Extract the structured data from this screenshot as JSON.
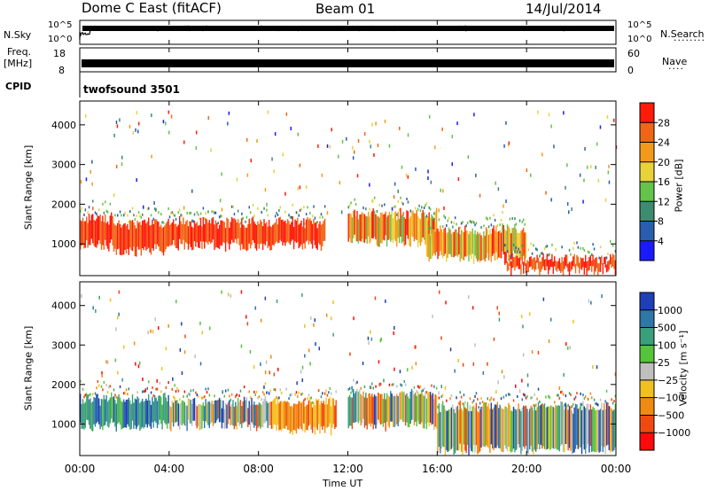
{
  "header": {
    "radar": "Dome C East (fitACF)",
    "beam": "Beam 01",
    "date": "14/Jul/2014"
  },
  "top_strips": {
    "nsky_label": "N.Sky",
    "nsky_ticks": [
      "10^5",
      "10^0"
    ],
    "nsearch_label": "N.Search",
    "nsearch_ticks": [
      "10^5",
      "10^0"
    ],
    "freq_label": "Freq.",
    "freq_unit": "[MHz]",
    "freq_ticks": [
      "18",
      "8"
    ],
    "nave_label": "Nave",
    "nave_ticks": [
      "60",
      "0"
    ],
    "cpid_label": "CPID",
    "cpid_value": "twofsound 3501"
  },
  "chart_data": [
    {
      "type": "heatmap",
      "panel": "power",
      "ylabel": "Slant Range [km]",
      "ylim": [
        200,
        4600
      ],
      "yticks": [
        "1000",
        "2000",
        "3000",
        "4000"
      ],
      "xlim_hours": [
        0,
        24
      ],
      "colorbar_label": "Power [dB]",
      "colorbar_ticks": [
        "4",
        "8",
        "12",
        "16",
        "20",
        "24",
        "28"
      ],
      "colorbar_colors": [
        "#1a1aff",
        "#2a5db0",
        "#3c8c6e",
        "#63c34a",
        "#e8d23a",
        "#f49a1a",
        "#f06616",
        "#ff1a0a"
      ],
      "bands": [
        {
          "t0": 0.0,
          "t1": 1.5,
          "r0": 900,
          "r1": 1700,
          "level": "high"
        },
        {
          "t0": 1.5,
          "t1": 4.0,
          "r0": 800,
          "r1": 1600,
          "level": "high"
        },
        {
          "t0": 4.0,
          "t1": 8.0,
          "r0": 900,
          "r1": 1600,
          "level": "high"
        },
        {
          "t0": 8.0,
          "t1": 11.0,
          "r0": 900,
          "r1": 1600,
          "level": "high"
        },
        {
          "t0": 12.0,
          "t1": 16.0,
          "r0": 1000,
          "r1": 1800,
          "level": "mid"
        },
        {
          "t0": 15.5,
          "t1": 20.0,
          "r0": 600,
          "r1": 1400,
          "level": "mid"
        },
        {
          "t0": 19.0,
          "t1": 24.0,
          "r0": 300,
          "r1": 700,
          "level": "high"
        }
      ]
    },
    {
      "type": "heatmap",
      "panel": "velocity",
      "ylabel": "Slant Range [km]",
      "ylim": [
        200,
        4600
      ],
      "yticks": [
        "1000",
        "2000",
        "3000",
        "4000"
      ],
      "xlim_hours": [
        0,
        24
      ],
      "xticks": [
        "00:00",
        "04:00",
        "08:00",
        "12:00",
        "16:00",
        "20:00",
        "00:00"
      ],
      "xlabel": "Time UT",
      "colorbar_label": "Velocity [m s⁻¹]",
      "colorbar_ticks": [
        "1000",
        "500",
        "100",
        "25",
        "−25",
        "−100",
        "−500",
        "−1000"
      ],
      "colorbar_colors": [
        "#1f3fb5",
        "#2e78a8",
        "#3a9f7a",
        "#55c43a",
        "#bfbfbf",
        "#f0c020",
        "#f08a10",
        "#f04a10",
        "#ff0a0a"
      ],
      "bands": [
        {
          "t0": 0.0,
          "t1": 4.0,
          "r0": 900,
          "r1": 1700,
          "level": "pos"
        },
        {
          "t0": 4.0,
          "t1": 8.5,
          "r0": 900,
          "r1": 1600,
          "level": "mix"
        },
        {
          "t0": 8.5,
          "t1": 11.5,
          "r0": 800,
          "r1": 1600,
          "level": "neg"
        },
        {
          "t0": 12.0,
          "t1": 16.0,
          "r0": 900,
          "r1": 1800,
          "level": "mix"
        },
        {
          "t0": 16.0,
          "t1": 24.0,
          "r0": 300,
          "r1": 1500,
          "level": "mix"
        }
      ]
    }
  ]
}
